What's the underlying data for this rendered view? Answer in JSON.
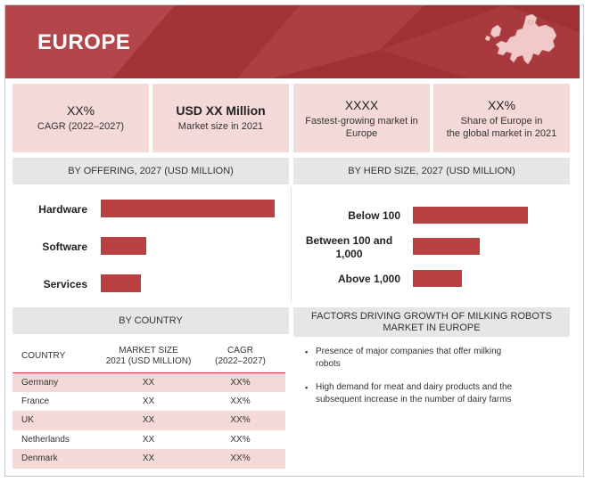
{
  "banner": {
    "title": "EUROPE",
    "map_icon": "europe-map-icon"
  },
  "cards": [
    {
      "value": "XX%",
      "label_lines": [
        "CAGR (2022–2027)"
      ]
    },
    {
      "value": "USD XX Million",
      "label_lines": [
        "Market size in 2021"
      ]
    },
    {
      "value": "XXXX",
      "label_lines": [
        "Fastest-growing market in",
        "Europe"
      ]
    },
    {
      "value": "XX%",
      "label_lines": [
        "Share of Europe in",
        "the global market in 2021"
      ]
    }
  ],
  "offering": {
    "heading": "BY OFFERING, 2027 (USD MILLION)",
    "chart_data": {
      "type": "bar",
      "orientation": "horizontal",
      "categories": [
        "Hardware",
        "Software",
        "Services"
      ],
      "values": [
        100,
        26,
        23
      ],
      "value_labels_shown": false,
      "grid": false
    }
  },
  "herd": {
    "heading": "BY HERD SIZE, 2027 (USD MILLION)",
    "chart_data": {
      "type": "bar",
      "orientation": "horizontal",
      "categories": [
        "Below 100",
        "Between 100 and 1,000",
        "Above 1,000"
      ],
      "category_lines": [
        [
          "Below 100"
        ],
        [
          "Between 100 and",
          "1,000"
        ],
        [
          "Above 1,000"
        ]
      ],
      "values": [
        100,
        58,
        43
      ],
      "value_labels_shown": false,
      "grid": false
    }
  },
  "country": {
    "heading": "BY COUNTRY",
    "columns": [
      [
        "COUNTRY"
      ],
      [
        "MARKET SIZE",
        "2021 (USD MILLION)"
      ],
      [
        "CAGR",
        "(2022–2027)"
      ]
    ],
    "rows": [
      [
        "Germany",
        "XX",
        "XX%"
      ],
      [
        "France",
        "XX",
        "XX%"
      ],
      [
        "UK",
        "XX",
        "XX%"
      ],
      [
        "Netherlands",
        "XX",
        "XX%"
      ],
      [
        "Denmark",
        "XX",
        "XX%"
      ]
    ]
  },
  "factors": {
    "heading_lines": [
      "FACTORS DRIVING GROWTH OF MILKING ROBOTS",
      "MARKET IN EUROPE"
    ],
    "items": [
      [
        "Presence of major companies that offer milking",
        "robots"
      ],
      [
        "High demand for meat and dairy products and the",
        "subsequent increase in the number of dairy farms"
      ]
    ]
  },
  "colors": {
    "banner": "#a8383b",
    "bar": "#b84040",
    "card": "#f4d9d9",
    "section_head": "#e6e6e6"
  }
}
